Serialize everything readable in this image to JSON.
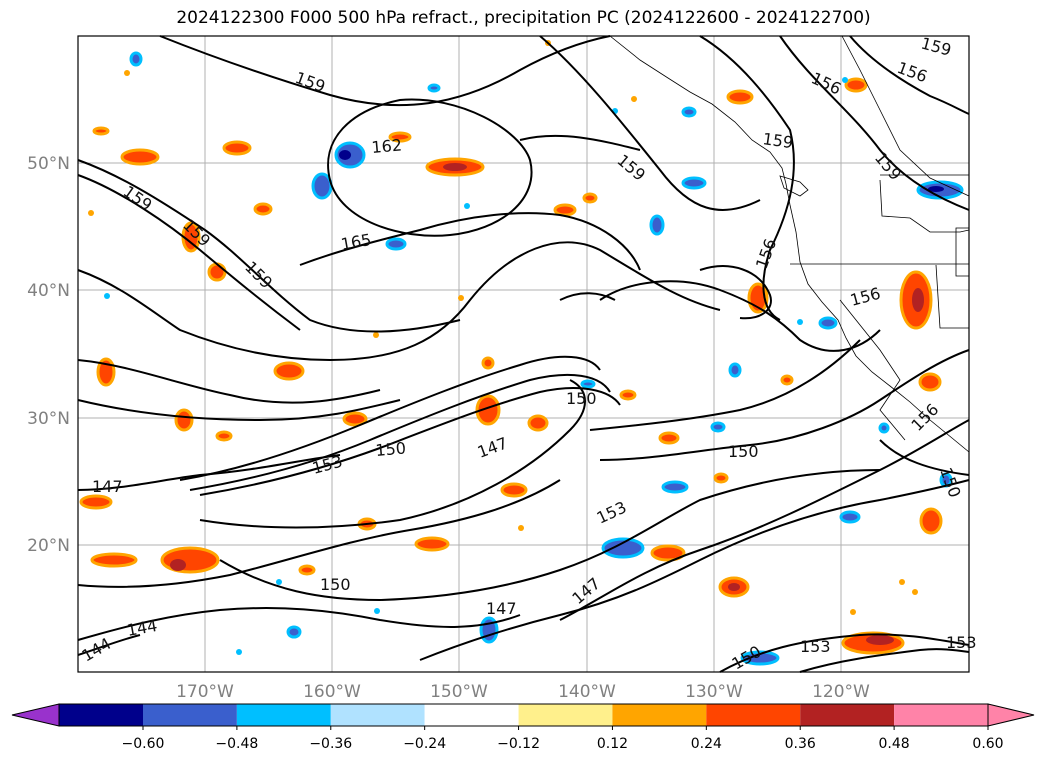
{
  "title": "2024122300 F000 500 hPa refract., precipitation PC (2024122600 - 2024122700)",
  "map": {
    "lat_labels": [
      "50°N",
      "40°N",
      "30°N",
      "20°N"
    ],
    "lon_labels": [
      "170°W",
      "160°W",
      "150°W",
      "140°W",
      "130°W",
      "120°W"
    ],
    "contour_labels": [
      "159",
      "156",
      "156",
      "159",
      "162",
      "159",
      "159",
      "165",
      "159",
      "159",
      "156",
      "156",
      "159",
      "159",
      "147",
      "153",
      "150",
      "147",
      "150",
      "153",
      "150",
      "147",
      "153",
      "147",
      "150",
      "150",
      "153",
      "144",
      "144",
      "156",
      "150"
    ]
  },
  "colorbar": {
    "ticks": [
      "−0.60",
      "−0.48",
      "−0.36",
      "−0.24",
      "−0.12",
      "0.12",
      "0.24",
      "0.36",
      "0.48",
      "0.60"
    ],
    "colors": {
      "under": "#9932cc",
      "bins": [
        "#00008b",
        "#3a5fcd",
        "#00bfff",
        "#b0e2ff",
        "#ffffff",
        "#fff08c",
        "#ffa500",
        "#ff4500",
        "#b22222",
        "#ff83a8"
      ],
      "over": "#ff83a8"
    }
  }
}
